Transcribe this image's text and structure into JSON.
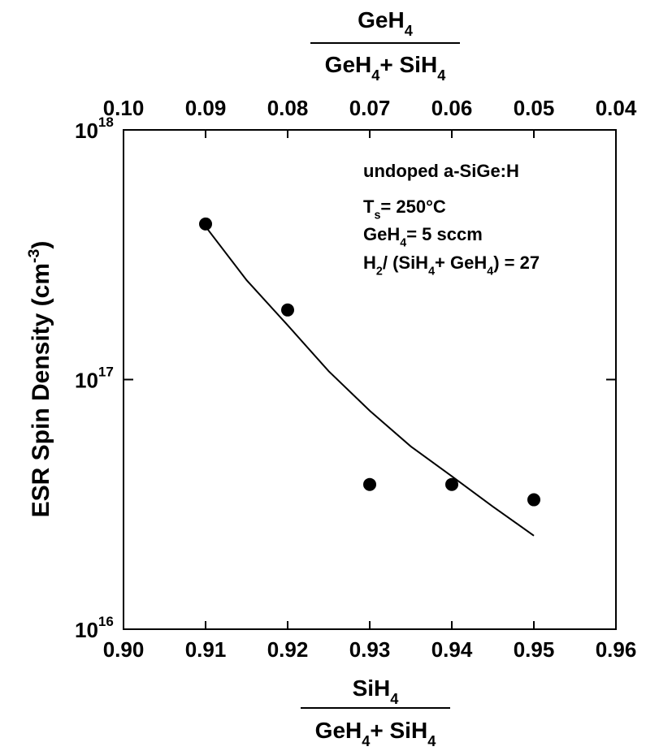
{
  "chart_data": {
    "type": "scatter",
    "y_log_scale": true,
    "xlim": [
      0.9,
      0.96
    ],
    "xticks": [
      {
        "value": 0.9,
        "label": "0.90"
      },
      {
        "value": 0.91,
        "label": "0.91"
      },
      {
        "value": 0.92,
        "label": "0.92"
      },
      {
        "value": 0.93,
        "label": "0.93"
      },
      {
        "value": 0.94,
        "label": "0.94"
      },
      {
        "value": 0.95,
        "label": "0.95"
      },
      {
        "value": 0.96,
        "label": "0.96"
      }
    ],
    "x2lim": [
      0.1,
      0.04
    ],
    "x2ticks": [
      {
        "value": 0.1,
        "label": "0.10"
      },
      {
        "value": 0.09,
        "label": "0.09"
      },
      {
        "value": 0.08,
        "label": "0.08"
      },
      {
        "value": 0.07,
        "label": "0.07"
      },
      {
        "value": 0.06,
        "label": "0.06"
      },
      {
        "value": 0.05,
        "label": "0.05"
      },
      {
        "value": 0.04,
        "label": "0.04"
      }
    ],
    "ylim": [
      1e+16,
      1e+18
    ],
    "yticks": [
      {
        "value": 1e+16,
        "label": "10",
        "exponent": "16"
      },
      {
        "value": 1e+17,
        "label": "10",
        "exponent": "17"
      },
      {
        "value": 1e+18,
        "label": "10",
        "exponent": "18"
      }
    ],
    "xlabel": {
      "numerator": [
        {
          "text": "SiH"
        },
        {
          "sub": "4"
        }
      ],
      "denominator": [
        {
          "text": "GeH"
        },
        {
          "sub": "4"
        },
        {
          "text": "+ SiH"
        },
        {
          "sub": "4"
        }
      ]
    },
    "x2label": {
      "numerator": [
        {
          "text": "GeH"
        },
        {
          "sub": "4"
        }
      ],
      "denominator": [
        {
          "text": "GeH"
        },
        {
          "sub": "4"
        },
        {
          "text": "+ SiH"
        },
        {
          "sub": "4"
        }
      ]
    },
    "ylabel": [
      {
        "text": "ESR Spin Density (cm"
      },
      {
        "sup": "-3"
      },
      {
        "text": ")"
      }
    ],
    "annotations": [
      [
        {
          "text": "undoped a-SiGe:H"
        }
      ],
      [
        {
          "text": "T"
        },
        {
          "sub": "s"
        },
        {
          "text": "= 250°C"
        }
      ],
      [
        {
          "text": "GeH"
        },
        {
          "sub": "4"
        },
        {
          "text": "=  5 sccm"
        }
      ],
      [
        {
          "text": "H"
        },
        {
          "sub": "2"
        },
        {
          "text": "/ (SiH"
        },
        {
          "sub": "4"
        },
        {
          "text": "+ GeH"
        },
        {
          "sub": "4"
        },
        {
          "text": ")  =  27"
        }
      ]
    ],
    "series": [
      {
        "color": "#000000",
        "style": "markers",
        "x": [
          0.91,
          0.92,
          0.93,
          0.94,
          0.95
        ],
        "values": [
          4.2e+17,
          1.9e+17,
          3.8e+16,
          3.8e+16,
          3.3e+16
        ]
      },
      {
        "color": "#000000",
        "style": "line",
        "x": [
          0.91,
          0.915,
          0.92,
          0.925,
          0.93,
          0.935,
          0.94,
          0.945,
          0.95
        ],
        "values": [
          4.1e+17,
          2.5e+17,
          1.65e+17,
          1.08e+17,
          7.5e+16,
          5.4e+16,
          4.1e+16,
          3.1e+16,
          2.37e+16
        ]
      }
    ]
  }
}
